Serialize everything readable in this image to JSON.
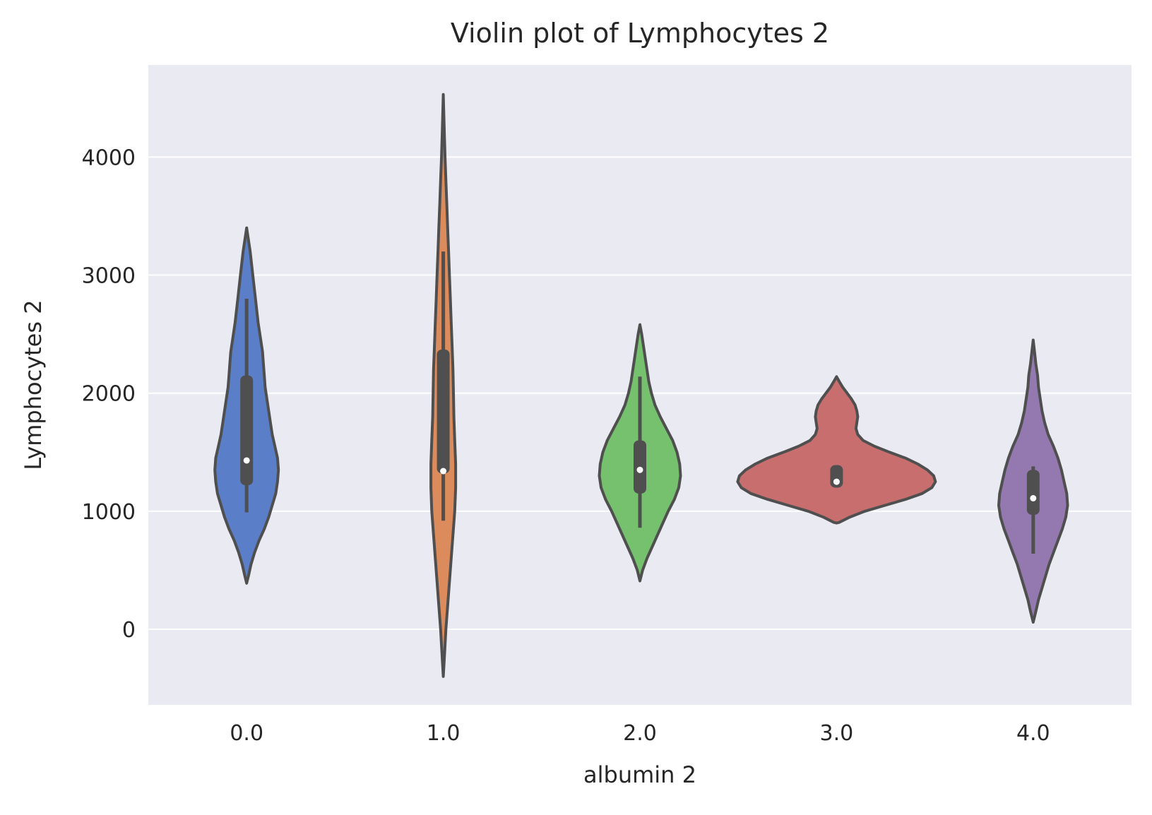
{
  "chart_data": {
    "type": "violin",
    "title": "Violin plot of Lymphocytes 2",
    "xlabel": "albumin 2",
    "ylabel": "Lymphocytes 2",
    "categories": [
      "0.0",
      "1.0",
      "2.0",
      "3.0",
      "4.0"
    ],
    "yticks": [
      "0",
      "1000",
      "2000",
      "3000",
      "4000"
    ],
    "ylim": [
      -640,
      4780
    ],
    "grid": true,
    "colors": {
      "background": "#eaeaf2",
      "grid": "#ffffff",
      "outline": "#4f4f4f",
      "fills": [
        "#5a7fc8",
        "#dc8b5c",
        "#76c16e",
        "#c86e6e",
        "#9479b0"
      ]
    },
    "violins": [
      {
        "category": "0.0",
        "ymin": 390,
        "ymax": 3400,
        "density": [
          [
            390,
            0
          ],
          [
            450,
            0.02
          ],
          [
            550,
            0.05
          ],
          [
            650,
            0.09
          ],
          [
            750,
            0.14
          ],
          [
            850,
            0.2
          ],
          [
            950,
            0.25
          ],
          [
            1050,
            0.29
          ],
          [
            1150,
            0.33
          ],
          [
            1250,
            0.35
          ],
          [
            1350,
            0.36
          ],
          [
            1450,
            0.35
          ],
          [
            1550,
            0.32
          ],
          [
            1650,
            0.29
          ],
          [
            1750,
            0.27
          ],
          [
            1850,
            0.25
          ],
          [
            1950,
            0.23
          ],
          [
            2050,
            0.21
          ],
          [
            2150,
            0.2
          ],
          [
            2250,
            0.19
          ],
          [
            2350,
            0.18
          ],
          [
            2450,
            0.16
          ],
          [
            2600,
            0.13
          ],
          [
            2800,
            0.1
          ],
          [
            3000,
            0.07
          ],
          [
            3200,
            0.04
          ],
          [
            3400,
            0
          ]
        ],
        "box": {
          "q1": 1220,
          "median": 1430,
          "q3": 2150,
          "whisker_low": 990,
          "whisker_high": 2800
        }
      },
      {
        "category": "1.0",
        "ymin": -400,
        "ymax": 4530,
        "density": [
          [
            -400,
            0
          ],
          [
            -200,
            0.015
          ],
          [
            0,
            0.03
          ],
          [
            200,
            0.05
          ],
          [
            400,
            0.07
          ],
          [
            600,
            0.09
          ],
          [
            800,
            0.11
          ],
          [
            1000,
            0.13
          ],
          [
            1200,
            0.14
          ],
          [
            1400,
            0.14
          ],
          [
            1600,
            0.13
          ],
          [
            1800,
            0.12
          ],
          [
            2000,
            0.115
          ],
          [
            2200,
            0.11
          ],
          [
            2400,
            0.1
          ],
          [
            2600,
            0.09
          ],
          [
            2800,
            0.08
          ],
          [
            3000,
            0.07
          ],
          [
            3200,
            0.06
          ],
          [
            3400,
            0.05
          ],
          [
            3600,
            0.04
          ],
          [
            3800,
            0.03
          ],
          [
            4000,
            0.02
          ],
          [
            4200,
            0.012
          ],
          [
            4530,
            0
          ]
        ],
        "box": {
          "q1": 1320,
          "median": 1340,
          "q3": 2370,
          "whisker_low": 920,
          "whisker_high": 3200
        }
      },
      {
        "category": "2.0",
        "ymin": 410,
        "ymax": 2580,
        "density": [
          [
            410,
            0
          ],
          [
            500,
            0.03
          ],
          [
            600,
            0.08
          ],
          [
            700,
            0.14
          ],
          [
            800,
            0.2
          ],
          [
            900,
            0.26
          ],
          [
            1000,
            0.32
          ],
          [
            1100,
            0.39
          ],
          [
            1200,
            0.44
          ],
          [
            1300,
            0.46
          ],
          [
            1400,
            0.45
          ],
          [
            1500,
            0.42
          ],
          [
            1600,
            0.37
          ],
          [
            1700,
            0.3
          ],
          [
            1800,
            0.23
          ],
          [
            1900,
            0.17
          ],
          [
            2000,
            0.13
          ],
          [
            2100,
            0.1
          ],
          [
            2200,
            0.08
          ],
          [
            2300,
            0.06
          ],
          [
            2400,
            0.04
          ],
          [
            2500,
            0.02
          ],
          [
            2580,
            0
          ]
        ],
        "box": {
          "q1": 1150,
          "median": 1350,
          "q3": 1600,
          "whisker_low": 860,
          "whisker_high": 2140
        }
      },
      {
        "category": "3.0",
        "ymin": 900,
        "ymax": 2140,
        "density": [
          [
            900,
            0
          ],
          [
            905,
            0.03
          ],
          [
            950,
            0.15
          ],
          [
            1000,
            0.32
          ],
          [
            1050,
            0.55
          ],
          [
            1100,
            0.78
          ],
          [
            1150,
            0.97
          ],
          [
            1200,
            1.08
          ],
          [
            1250,
            1.12
          ],
          [
            1300,
            1.1
          ],
          [
            1350,
            1.03
          ],
          [
            1400,
            0.92
          ],
          [
            1450,
            0.78
          ],
          [
            1500,
            0.6
          ],
          [
            1550,
            0.43
          ],
          [
            1600,
            0.3
          ],
          [
            1650,
            0.24
          ],
          [
            1700,
            0.22
          ],
          [
            1750,
            0.23
          ],
          [
            1800,
            0.24
          ],
          [
            1850,
            0.23
          ],
          [
            1900,
            0.21
          ],
          [
            1950,
            0.17
          ],
          [
            2000,
            0.12
          ],
          [
            2050,
            0.07
          ],
          [
            2100,
            0.03
          ],
          [
            2140,
            0
          ]
        ],
        "box": {
          "q1": 1200,
          "median": 1250,
          "q3": 1390,
          "whisker_low": 1200,
          "whisker_high": 1390
        }
      },
      {
        "category": "4.0",
        "ymin": 60,
        "ymax": 2450,
        "density": [
          [
            60,
            0
          ],
          [
            150,
            0.03
          ],
          [
            250,
            0.06
          ],
          [
            350,
            0.1
          ],
          [
            450,
            0.14
          ],
          [
            550,
            0.18
          ],
          [
            650,
            0.23
          ],
          [
            750,
            0.28
          ],
          [
            850,
            0.33
          ],
          [
            950,
            0.37
          ],
          [
            1050,
            0.39
          ],
          [
            1150,
            0.38
          ],
          [
            1250,
            0.35
          ],
          [
            1350,
            0.32
          ],
          [
            1450,
            0.28
          ],
          [
            1550,
            0.23
          ],
          [
            1650,
            0.17
          ],
          [
            1750,
            0.13
          ],
          [
            1850,
            0.1
          ],
          [
            1950,
            0.08
          ],
          [
            2050,
            0.06
          ],
          [
            2150,
            0.05
          ],
          [
            2250,
            0.03
          ],
          [
            2350,
            0.015
          ],
          [
            2450,
            0
          ]
        ],
        "box": {
          "q1": 970,
          "median": 1110,
          "q3": 1350,
          "whisker_low": 640,
          "whisker_high": 1380
        }
      }
    ]
  }
}
